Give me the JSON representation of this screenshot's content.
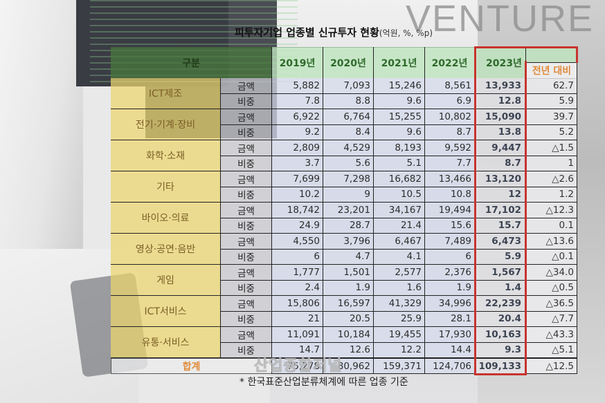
{
  "watermark": {
    "text": "VENTURE",
    "press_mark": "산업종합저널"
  },
  "title": {
    "main": "피투자기업 업종별 신규투자 현황",
    "unit": "(억원, %, %p)"
  },
  "table": {
    "header": {
      "category": "구분",
      "years": [
        "2019년",
        "2020년",
        "2021년",
        "2022년",
        "2023년"
      ],
      "change": "전년 대비"
    },
    "sub_labels": {
      "amount": "금액",
      "share": "비중"
    },
    "rows": [
      {
        "category": "ICT제조",
        "amount": [
          "5,882",
          "7,093",
          "15,246",
          "8,561",
          "13,933",
          "62.7"
        ],
        "share": [
          "7.8",
          "8.8",
          "9.6",
          "6.9",
          "12.8",
          "5.9"
        ]
      },
      {
        "category": "전기·기계·장비",
        "amount": [
          "6,922",
          "6,764",
          "15,255",
          "10,802",
          "15,090",
          "39.7"
        ],
        "share": [
          "9.2",
          "8.4",
          "9.6",
          "8.7",
          "13.8",
          "5.2"
        ]
      },
      {
        "category": "화학·소재",
        "amount": [
          "2,809",
          "4,529",
          "8,193",
          "9,592",
          "9,447",
          "△1.5"
        ],
        "share": [
          "3.7",
          "5.6",
          "5.1",
          "7.7",
          "8.7",
          "1"
        ]
      },
      {
        "category": "기타",
        "amount": [
          "7,699",
          "7,298",
          "16,682",
          "13,466",
          "13,120",
          "△2.6"
        ],
        "share": [
          "10.2",
          "9",
          "10.5",
          "10.8",
          "12",
          "1.2"
        ]
      },
      {
        "category": "바이오·의료",
        "amount": [
          "18,742",
          "23,201",
          "34,167",
          "19,494",
          "17,102",
          "△12.3"
        ],
        "share": [
          "24.9",
          "28.7",
          "21.4",
          "15.6",
          "15.7",
          "0.1"
        ]
      },
      {
        "category": "영상·공연·음반",
        "amount": [
          "4,550",
          "3,796",
          "6,467",
          "7,489",
          "6,473",
          "△13.6"
        ],
        "share": [
          "6",
          "4.7",
          "4.1",
          "6",
          "5.9",
          "△0.1"
        ]
      },
      {
        "category": "게임",
        "amount": [
          "1,777",
          "1,501",
          "2,577",
          "2,376",
          "1,567",
          "△34.0"
        ],
        "share": [
          "2.4",
          "1.9",
          "1.6",
          "1.9",
          "1.4",
          "△0.5"
        ]
      },
      {
        "category": "ICT서비스",
        "amount": [
          "15,806",
          "16,597",
          "41,329",
          "34,996",
          "22,239",
          "△36.5"
        ],
        "share": [
          "21",
          "20.5",
          "25.9",
          "28.1",
          "20.4",
          "△7.7"
        ]
      },
      {
        "category": "유통·서비스",
        "amount": [
          "11,091",
          "10,184",
          "19,455",
          "17,930",
          "10,163",
          "△43.3"
        ],
        "share": [
          "14.7",
          "12.6",
          "12.2",
          "14.4",
          "9.3",
          "△5.1"
        ]
      }
    ],
    "total": {
      "label": "합계",
      "values": [
        "75,278",
        "80,962",
        "159,371",
        "124,706",
        "109,133",
        "△12.5"
      ]
    }
  },
  "footnote": "* 한국표준산업분류체계에 따른 업종 기준",
  "colors": {
    "header_green": "#2e6a2a",
    "category_text": "#7a5e26",
    "highlight_orange": "#e08b3a",
    "highlight_box_red": "#c7342f"
  }
}
